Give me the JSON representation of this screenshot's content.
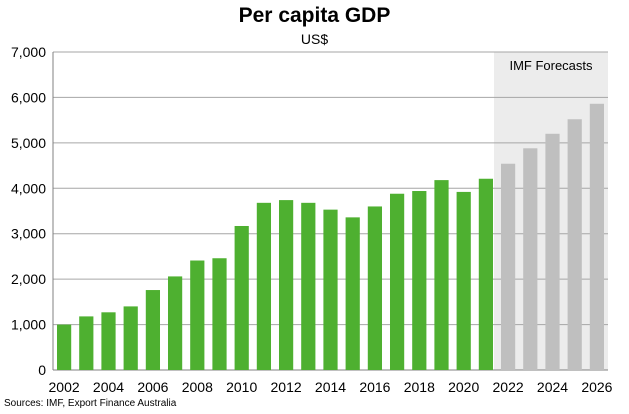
{
  "chart_data": {
    "type": "bar",
    "title": "Per capita GDP",
    "subtitle": "US$",
    "source": "Sources: IMF, Export Finance Australia",
    "forecast_label": "IMF Forecasts",
    "categories": [
      "2002",
      "2003",
      "2004",
      "2005",
      "2006",
      "2007",
      "2008",
      "2009",
      "2010",
      "2011",
      "2012",
      "2013",
      "2014",
      "2015",
      "2016",
      "2017",
      "2018",
      "2019",
      "2020",
      "2021",
      "2022",
      "2023",
      "2024",
      "2025",
      "2026"
    ],
    "x_tick_labels": [
      "2002",
      "2004",
      "2006",
      "2008",
      "2010",
      "2012",
      "2014",
      "2016",
      "2018",
      "2020",
      "2022",
      "2024",
      "2026"
    ],
    "values": [
      1000,
      1180,
      1270,
      1400,
      1760,
      2060,
      2410,
      2460,
      3170,
      3680,
      3740,
      3680,
      3530,
      3360,
      3600,
      3880,
      3940,
      4180,
      3920,
      4210,
      4540,
      4880,
      5200,
      5520,
      5860
    ],
    "forecast_start": "2022",
    "y_tick_labels": [
      "0",
      "1,000",
      "2,000",
      "3,000",
      "4,000",
      "5,000",
      "6,000",
      "7,000"
    ],
    "ylim": [
      0,
      7000
    ],
    "grid": true,
    "colors": {
      "actual": "#4eb030",
      "forecast": "#bfbfbf",
      "forecast_band": "#ececec",
      "grid": "#a6a6a6"
    }
  }
}
